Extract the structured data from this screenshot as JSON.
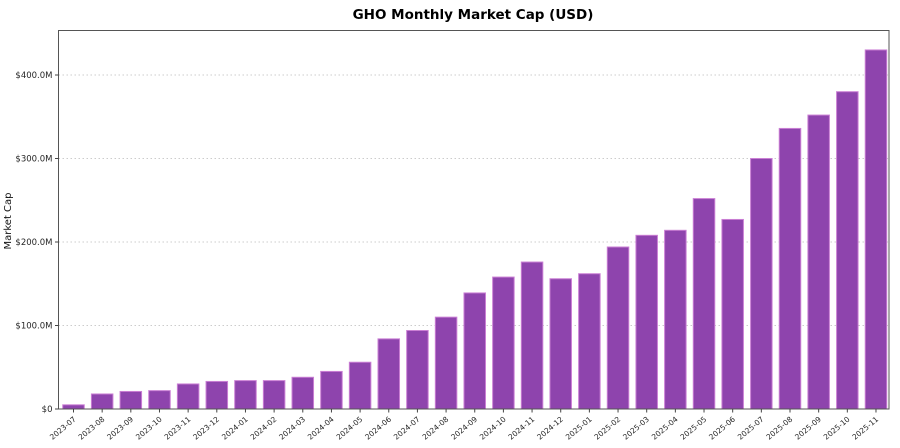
{
  "chart_data": {
    "type": "bar",
    "title": "GHO Monthly Market Cap (USD)",
    "xlabel": "",
    "ylabel": "Market Cap",
    "value_unit": "millions USD",
    "categories": [
      "2023-07",
      "2023-08",
      "2023-09",
      "2023-10",
      "2023-11",
      "2023-12",
      "2024-01",
      "2024-02",
      "2024-03",
      "2024-04",
      "2024-05",
      "2024-06",
      "2024-07",
      "2024-08",
      "2024-09",
      "2024-10",
      "2024-11",
      "2024-12",
      "2025-01",
      "2025-02",
      "2025-03",
      "2025-04",
      "2025-05",
      "2025-06",
      "2025-07",
      "2025-08",
      "2025-09",
      "2025-10",
      "2025-11"
    ],
    "values": [
      5,
      18,
      21,
      22,
      30,
      33,
      34,
      34,
      38,
      45,
      56,
      84,
      94,
      110,
      139,
      158,
      176,
      156,
      162,
      194,
      208,
      214,
      252,
      227,
      300,
      336,
      352,
      380,
      430
    ],
    "ylim": [
      0,
      453
    ],
    "yticks": [
      {
        "value": 0,
        "label": "$0"
      },
      {
        "value": 100,
        "label": "$100.0M"
      },
      {
        "value": 200,
        "label": "$200.0M"
      },
      {
        "value": 300,
        "label": "$300.0M"
      },
      {
        "value": 400,
        "label": "$400.0M"
      }
    ],
    "grid": "horizontal-dotted",
    "legend": "none",
    "bar_color": "#8e44ad",
    "bar_edge_color": "#ca7fd4",
    "grid_color": "#cccccc",
    "spine_color": "#555555",
    "tick_color": "#444444",
    "background_color": "#ffffff"
  }
}
